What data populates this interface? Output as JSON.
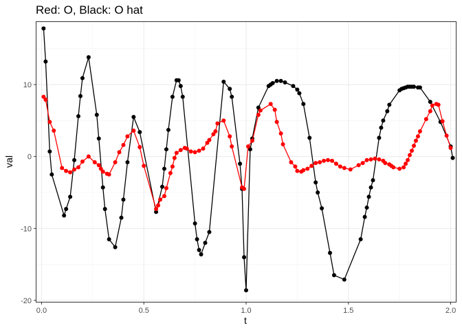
{
  "chart_data": {
    "type": "line",
    "title": "Red: O, Black: O hat",
    "xlabel": "t",
    "ylabel": "val",
    "xlim": [
      -0.025,
      2.025
    ],
    "ylim": [
      -20.2,
      18.7
    ],
    "x_ticks": [
      {
        "value": 0.0,
        "label": "0.0"
      },
      {
        "value": 0.5,
        "label": "0.5"
      },
      {
        "value": 1.0,
        "label": "1.0"
      },
      {
        "value": 1.5,
        "label": "1.5"
      },
      {
        "value": 2.0,
        "label": "2.0"
      }
    ],
    "y_ticks": [
      {
        "value": -20,
        "label": "-20"
      },
      {
        "value": -10,
        "label": "-10"
      },
      {
        "value": 0,
        "label": "0"
      },
      {
        "value": 10,
        "label": "10"
      }
    ],
    "x_minor": [
      0.25,
      0.75,
      1.25,
      1.75
    ],
    "y_minor": [
      -15,
      -5,
      5,
      15
    ],
    "grid": true,
    "legend": "none",
    "series": [
      {
        "color": "#000000",
        "points": [
          [
            0.01,
            17.8
          ],
          [
            0.02,
            13.2
          ],
          [
            0.04,
            0.7
          ],
          [
            0.05,
            -2.5
          ],
          [
            0.11,
            -8.2
          ],
          [
            0.12,
            -7.3
          ],
          [
            0.14,
            -5.6
          ],
          [
            0.16,
            -0.5
          ],
          [
            0.18,
            5.6
          ],
          [
            0.19,
            8.4
          ],
          [
            0.2,
            10.9
          ],
          [
            0.23,
            13.8
          ],
          [
            0.27,
            5.8
          ],
          [
            0.28,
            2.5
          ],
          [
            0.3,
            -4.3
          ],
          [
            0.31,
            -7.3
          ],
          [
            0.33,
            -11.5
          ],
          [
            0.36,
            -12.6
          ],
          [
            0.39,
            -8.5
          ],
          [
            0.4,
            -6.0
          ],
          [
            0.42,
            -0.8
          ],
          [
            0.45,
            5.5
          ],
          [
            0.48,
            3.4
          ],
          [
            0.56,
            -7.7
          ],
          [
            0.59,
            -4.2
          ],
          [
            0.6,
            -1.7
          ],
          [
            0.61,
            1.0
          ],
          [
            0.62,
            3.7
          ],
          [
            0.64,
            8.3
          ],
          [
            0.66,
            10.6
          ],
          [
            0.67,
            10.6
          ],
          [
            0.68,
            9.8
          ],
          [
            0.69,
            8.3
          ],
          [
            0.75,
            -9.3
          ],
          [
            0.76,
            -11.5
          ],
          [
            0.77,
            -13.0
          ],
          [
            0.78,
            -13.6
          ],
          [
            0.8,
            -12.0
          ],
          [
            0.82,
            -10.5
          ],
          [
            0.89,
            10.4
          ],
          [
            0.92,
            9.4
          ],
          [
            0.93,
            8.3
          ],
          [
            0.97,
            -1.0
          ],
          [
            0.98,
            -4.5
          ],
          [
            0.99,
            -14.0
          ],
          [
            1.0,
            -18.6
          ],
          [
            1.02,
            1.0
          ],
          [
            1.03,
            2.5
          ],
          [
            1.06,
            6.8
          ],
          [
            1.11,
            9.8
          ],
          [
            1.12,
            10.0
          ],
          [
            1.13,
            10.2
          ],
          [
            1.15,
            10.5
          ],
          [
            1.17,
            10.5
          ],
          [
            1.19,
            10.3
          ],
          [
            1.23,
            9.8
          ],
          [
            1.25,
            9.3
          ],
          [
            1.26,
            8.8
          ],
          [
            1.28,
            7.3
          ],
          [
            1.31,
            2.6
          ],
          [
            1.34,
            -3.6
          ],
          [
            1.35,
            -5.0
          ],
          [
            1.37,
            -7.2
          ],
          [
            1.41,
            -13.4
          ],
          [
            1.43,
            -16.5
          ],
          [
            1.48,
            -17.1
          ],
          [
            1.56,
            -11.5
          ],
          [
            1.58,
            -8.4
          ],
          [
            1.59,
            -7.1
          ],
          [
            1.6,
            -5.6
          ],
          [
            1.61,
            -4.3
          ],
          [
            1.62,
            -3.3
          ],
          [
            1.65,
            2.6
          ],
          [
            1.66,
            4.0
          ],
          [
            1.67,
            5.0
          ],
          [
            1.69,
            6.3
          ],
          [
            1.7,
            7.2
          ],
          [
            1.75,
            9.2
          ],
          [
            1.76,
            9.4
          ],
          [
            1.77,
            9.5
          ],
          [
            1.78,
            9.6
          ],
          [
            1.79,
            9.7
          ],
          [
            1.8,
            9.7
          ],
          [
            1.81,
            9.7
          ],
          [
            1.82,
            9.7
          ],
          [
            1.84,
            9.6
          ],
          [
            1.85,
            9.6
          ],
          [
            1.9,
            7.6
          ],
          [
            1.95,
            4.8
          ],
          [
            2.0,
            1.4
          ],
          [
            2.01,
            -0.2
          ]
        ]
      },
      {
        "color": "#ff0000",
        "points": [
          [
            0.01,
            8.3
          ],
          [
            0.02,
            7.9
          ],
          [
            0.04,
            4.8
          ],
          [
            0.06,
            3.6
          ],
          [
            0.1,
            -1.6
          ],
          [
            0.12,
            -2.0
          ],
          [
            0.14,
            -2.2
          ],
          [
            0.16,
            -1.8
          ],
          [
            0.18,
            -1.5
          ],
          [
            0.2,
            -0.7
          ],
          [
            0.23,
            0.0
          ],
          [
            0.26,
            -0.8
          ],
          [
            0.28,
            -1.2
          ],
          [
            0.29,
            -1.7
          ],
          [
            0.3,
            -2.1
          ],
          [
            0.32,
            -2.4
          ],
          [
            0.33,
            -2.5
          ],
          [
            0.36,
            -0.8
          ],
          [
            0.38,
            0.6
          ],
          [
            0.4,
            1.6
          ],
          [
            0.42,
            2.8
          ],
          [
            0.45,
            3.6
          ],
          [
            0.48,
            1.3
          ],
          [
            0.5,
            -1.3
          ],
          [
            0.56,
            -7.3
          ],
          [
            0.57,
            -6.8
          ],
          [
            0.58,
            -6.0
          ],
          [
            0.6,
            -5.5
          ],
          [
            0.61,
            -4.4
          ],
          [
            0.63,
            -2.3
          ],
          [
            0.64,
            -1.4
          ],
          [
            0.65,
            -0.2
          ],
          [
            0.66,
            0.5
          ],
          [
            0.68,
            0.9
          ],
          [
            0.7,
            1.2
          ],
          [
            0.71,
            1.1
          ],
          [
            0.73,
            0.7
          ],
          [
            0.75,
            0.6
          ],
          [
            0.77,
            0.8
          ],
          [
            0.79,
            1.1
          ],
          [
            0.81,
            1.9
          ],
          [
            0.82,
            2.3
          ],
          [
            0.84,
            3.1
          ],
          [
            0.85,
            3.5
          ],
          [
            0.86,
            4.6
          ],
          [
            0.89,
            5.0
          ],
          [
            0.92,
            2.8
          ],
          [
            0.93,
            1.4
          ],
          [
            0.98,
            -4.3
          ],
          [
            0.99,
            -4.5
          ],
          [
            1.01,
            1.4
          ],
          [
            1.03,
            2.2
          ],
          [
            1.06,
            5.8
          ],
          [
            1.07,
            6.4
          ],
          [
            1.12,
            7.3
          ],
          [
            1.14,
            6.5
          ],
          [
            1.15,
            4.8
          ],
          [
            1.17,
            3.2
          ],
          [
            1.18,
            1.7
          ],
          [
            1.22,
            -0.8
          ],
          [
            1.24,
            -1.4
          ],
          [
            1.25,
            -2.0
          ],
          [
            1.27,
            -2.1
          ],
          [
            1.28,
            -1.9
          ],
          [
            1.3,
            -1.7
          ],
          [
            1.32,
            -1.3
          ],
          [
            1.34,
            -0.9
          ],
          [
            1.36,
            -0.8
          ],
          [
            1.38,
            -0.6
          ],
          [
            1.4,
            -0.5
          ],
          [
            1.42,
            -0.6
          ],
          [
            1.44,
            -1.0
          ],
          [
            1.46,
            -1.4
          ],
          [
            1.48,
            -1.6
          ],
          [
            1.51,
            -1.8
          ],
          [
            1.55,
            -1.2
          ],
          [
            1.57,
            -0.9
          ],
          [
            1.59,
            -0.5
          ],
          [
            1.61,
            -0.4
          ],
          [
            1.63,
            -0.3
          ],
          [
            1.65,
            -0.4
          ],
          [
            1.67,
            -0.6
          ],
          [
            1.68,
            -0.9
          ],
          [
            1.7,
            -1.1
          ],
          [
            1.71,
            -1.3
          ],
          [
            1.72,
            -1.5
          ],
          [
            1.75,
            -1.7
          ],
          [
            1.77,
            -1.5
          ],
          [
            1.78,
            -1.0
          ],
          [
            1.79,
            -0.5
          ],
          [
            1.8,
            0.2
          ],
          [
            1.81,
            0.8
          ],
          [
            1.82,
            1.5
          ],
          [
            1.83,
            2.2
          ],
          [
            1.84,
            2.8
          ],
          [
            1.85,
            3.5
          ],
          [
            1.88,
            5.2
          ],
          [
            1.9,
            6.3
          ],
          [
            1.91,
            7.1
          ],
          [
            1.93,
            7.3
          ],
          [
            1.94,
            7.2
          ],
          [
            1.96,
            4.9
          ],
          [
            1.98,
            2.9
          ],
          [
            2.0,
            1.2
          ]
        ]
      }
    ]
  }
}
